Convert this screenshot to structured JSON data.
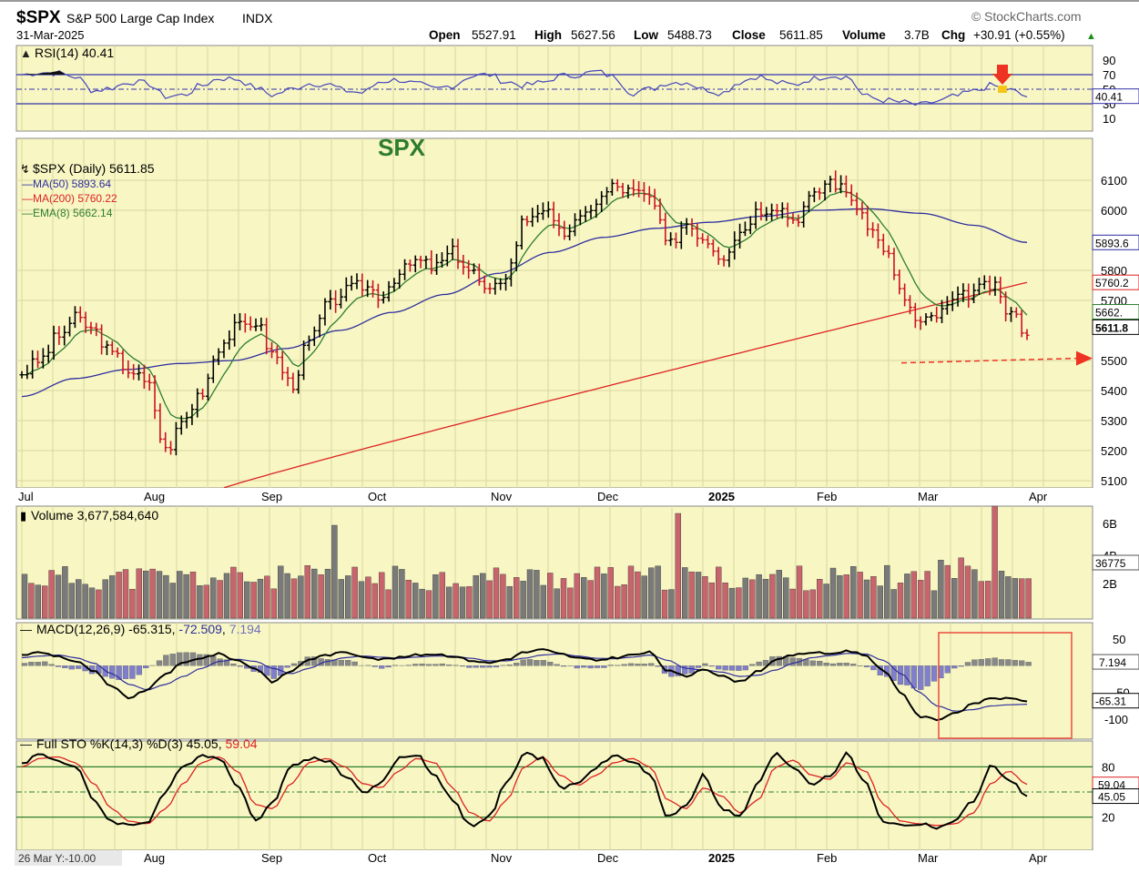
{
  "header": {
    "symbol": "$SPX",
    "name": "S&P 500 Large Cap Index",
    "exchange": "INDX",
    "date": "31-Mar-2025",
    "brand": "StockCharts.com",
    "open_label": "Open",
    "open": "5527.91",
    "high_label": "High",
    "high": "5627.56",
    "low_label": "Low",
    "low": "5488.73",
    "close_label": "Close",
    "close": "5611.85",
    "volume_label": "Volume",
    "volume": "3.7B",
    "chg_label": "Chg",
    "chg": "+30.91 (+0.55%)"
  },
  "colors": {
    "panel_bg": "#f8f7c4",
    "grid": "#d8d7a0",
    "up_bar": "#000000",
    "down_bar": "#cc1122",
    "ma50": "#2d2d9e",
    "ma200": "#dd2222",
    "ema8": "#2e7d2e",
    "rsi": "#4444bb",
    "annotation_red": "#ee3322",
    "annotation_green": "#2e7d2e",
    "volume_up": "#7a7a7a",
    "volume_down": "#c8646e",
    "histogram": "#7f7fcc"
  },
  "chart_data": [
    {
      "type": "line",
      "panel": "rsi",
      "legend": "RSI(14) 40.41",
      "y_ticks": [
        "90",
        "70",
        "50",
        "30",
        "10"
      ],
      "levels": [
        70,
        50,
        30
      ],
      "current_label": "40.41",
      "series": [
        {
          "values": [
            70,
            73,
            72,
            67,
            48,
            52,
            60,
            58,
            40,
            42,
            55,
            65,
            64,
            52,
            42,
            50,
            58,
            57,
            48,
            45,
            61,
            63,
            57,
            50,
            55,
            68,
            70,
            60,
            55,
            59,
            68,
            70,
            74,
            67,
            45,
            50,
            59,
            60,
            50,
            45,
            60,
            68,
            59,
            56,
            64,
            69,
            67,
            40,
            35,
            32,
            28,
            33,
            40,
            47,
            55,
            49,
            40
          ]
        }
      ],
      "annotation": "red down arrow above RSI at 50"
    },
    {
      "type": "bar",
      "panel": "price",
      "title_annotation": "SPX",
      "legend": [
        "$SPX (Daily) 5611.85",
        "MA(50) 5893.64",
        "MA(200) 5760.22",
        "EMA(8) 5662.14"
      ],
      "y_ticks": [
        "6100",
        "6000",
        "5800",
        "5700",
        "5500",
        "5400",
        "5300",
        "5200",
        "5100"
      ],
      "right_labels": [
        "5893.6",
        "5760.2",
        "5662.",
        "5611.8"
      ],
      "x_labels": [
        "Jul",
        "Aug",
        "Sep",
        "Oct",
        "Nov",
        "Dec",
        "2025",
        "Feb",
        "Mar",
        "Apr"
      ],
      "support_level": 5495,
      "close": [
        5460,
        5500,
        5580,
        5640,
        5600,
        5520,
        5470,
        5420,
        5200,
        5300,
        5400,
        5550,
        5610,
        5630,
        5520,
        5420,
        5560,
        5680,
        5730,
        5750,
        5720,
        5790,
        5830,
        5810,
        5860,
        5800,
        5720,
        5790,
        5970,
        6010,
        5920,
        5960,
        6030,
        6080,
        6060,
        6040,
        5880,
        5960,
        5910,
        5850,
        5930,
        6000,
        6020,
        5970,
        6040,
        6100,
        6060,
        5960,
        5880,
        5720,
        5620,
        5650,
        5700,
        5730,
        5750,
        5660,
        5600
      ]
    },
    {
      "type": "bar",
      "panel": "volume",
      "legend": "Volume 3,677,584,640",
      "y_ticks": [
        "6B",
        "4B",
        "2B"
      ],
      "current_label": "36775"
    },
    {
      "type": "line",
      "panel": "macd",
      "legend_prefix": "MACD(12,26,9)",
      "legend_macd": "-65.315",
      "legend_signal": "-72.509",
      "legend_hist": "7.194",
      "y_ticks": [
        "50",
        "-50",
        "-100"
      ],
      "right_labels": [
        "7.194",
        "-65.31"
      ],
      "series": [
        {
          "name": "MACD",
          "values": [
            20,
            25,
            18,
            8,
            -10,
            -40,
            -60,
            -45,
            -15,
            5,
            15,
            22,
            10,
            -5,
            -30,
            -10,
            12,
            20,
            25,
            18,
            12,
            15,
            20,
            22,
            18,
            10,
            5,
            12,
            25,
            30,
            22,
            14,
            10,
            15,
            20,
            25,
            -10,
            -20,
            -5,
            -20,
            -30,
            -10,
            10,
            20,
            25,
            22,
            28,
            20,
            -10,
            -50,
            -95,
            -100,
            -88,
            -72,
            -60,
            -62,
            -65
          ]
        },
        {
          "name": "Signal",
          "values": [
            15,
            18,
            20,
            15,
            5,
            -15,
            -35,
            -45,
            -35,
            -20,
            -5,
            8,
            12,
            8,
            -5,
            -15,
            -5,
            8,
            15,
            18,
            16,
            14,
            16,
            18,
            18,
            14,
            9,
            9,
            14,
            20,
            22,
            18,
            14,
            13,
            16,
            20,
            10,
            -5,
            -8,
            -12,
            -20,
            -18,
            -8,
            5,
            15,
            19,
            23,
            22,
            10,
            -15,
            -50,
            -75,
            -85,
            -82,
            -75,
            -73,
            -72
          ]
        },
        {
          "name": "Histogram",
          "values": [
            5,
            7,
            -2,
            -7,
            -15,
            -25,
            -25,
            0,
            20,
            25,
            20,
            14,
            -2,
            -13,
            -25,
            5,
            17,
            12,
            10,
            0,
            -4,
            1,
            4,
            4,
            0,
            -4,
            -4,
            3,
            11,
            10,
            0,
            -4,
            -4,
            2,
            4,
            5,
            -20,
            -15,
            3,
            -8,
            -10,
            8,
            18,
            15,
            10,
            3,
            5,
            -2,
            -20,
            -35,
            -45,
            -25,
            -3,
            10,
            15,
            11,
            7
          ]
        }
      ],
      "annotation": "red rectangle around recent MACD"
    },
    {
      "type": "line",
      "panel": "stochastic",
      "legend_prefix": "Full STO %K(14,3) %D(3)",
      "legend_k": "45.05",
      "legend_d": "59.04",
      "y_ticks": [
        "80",
        "20"
      ],
      "right_labels": [
        "59.04",
        "45.05"
      ],
      "levels": [
        80,
        50,
        20
      ],
      "x_labels": [
        "Aug",
        "Sep",
        "Oct",
        "Nov",
        "Dec",
        "2025",
        "Feb",
        "Mar",
        "Apr"
      ],
      "corner_label": "26 Mar Y:-10.00",
      "series": [
        {
          "name": "%K",
          "values": [
            85,
            95,
            88,
            80,
            40,
            15,
            10,
            15,
            50,
            80,
            95,
            90,
            60,
            15,
            40,
            80,
            90,
            88,
            70,
            50,
            60,
            90,
            95,
            70,
            40,
            10,
            20,
            60,
            95,
            90,
            55,
            60,
            80,
            92,
            88,
            70,
            20,
            35,
            70,
            30,
            20,
            60,
            95,
            80,
            60,
            70,
            95,
            60,
            15,
            10,
            12,
            8,
            15,
            40,
            80,
            65,
            45
          ]
        },
        {
          "name": "%D",
          "values": [
            80,
            90,
            92,
            85,
            60,
            30,
            15,
            12,
            30,
            60,
            85,
            92,
            75,
            35,
            30,
            60,
            85,
            90,
            80,
            60,
            55,
            75,
            90,
            85,
            55,
            25,
            15,
            40,
            80,
            92,
            70,
            58,
            70,
            85,
            90,
            80,
            40,
            30,
            55,
            45,
            25,
            40,
            80,
            88,
            70,
            65,
            85,
            75,
            35,
            15,
            12,
            10,
            12,
            25,
            60,
            75,
            59
          ]
        }
      ]
    }
  ]
}
